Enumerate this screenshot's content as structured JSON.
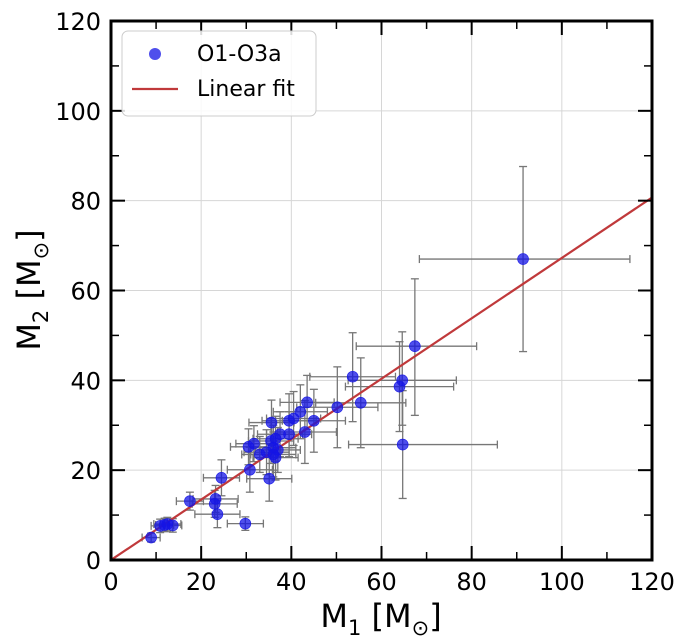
{
  "chart_data": {
    "type": "scatter",
    "title": "",
    "xlabel": {
      "main": "M",
      "sub": "1",
      "unit": "[M",
      "unit_sub": "⊙",
      "close": "]"
    },
    "ylabel": {
      "main": "M",
      "sub": "2",
      "unit": "[M",
      "unit_sub": "⊙",
      "close": "]"
    },
    "xlim": [
      0,
      120
    ],
    "ylim": [
      0,
      120
    ],
    "xticks": [
      0,
      20,
      40,
      60,
      80,
      100,
      120
    ],
    "yticks": [
      0,
      20,
      40,
      60,
      80,
      100,
      120
    ],
    "grid": true,
    "legend": {
      "placement": "top-left",
      "entries": [
        {
          "label": "O1-O3a",
          "kind": "marker",
          "color": "#1414e6"
        },
        {
          "label": "Linear fit",
          "kind": "line",
          "color": "#c0393b"
        }
      ]
    },
    "series": [
      {
        "name": "O1-O3a",
        "color": "#1414e6",
        "errorbar_color": "#777777",
        "points": [
          {
            "x": 91.4,
            "y": 67.0,
            "xerr": [
              23.0,
              23.7
            ],
            "yerr": [
              20.6,
              20.6
            ]
          },
          {
            "x": 67.4,
            "y": 47.6,
            "xerr": [
              13.0,
              13.7
            ],
            "yerr": [
              15.4,
              15.0
            ]
          },
          {
            "x": 53.6,
            "y": 40.8,
            "xerr": [
              9.5,
              9.5
            ],
            "yerr": [
              10.0,
              9.8
            ]
          },
          {
            "x": 64.6,
            "y": 40.0,
            "xerr": [
              12.0,
              12.0
            ],
            "yerr": [
              10.0,
              10.8
            ]
          },
          {
            "x": 64.0,
            "y": 38.6,
            "xerr": [
              12.0,
              12.0
            ],
            "yerr": [
              10.0,
              10.0
            ]
          },
          {
            "x": 55.4,
            "y": 35.0,
            "xerr": [
              10.0,
              10.0
            ],
            "yerr": [
              10.0,
              10.0
            ]
          },
          {
            "x": 64.7,
            "y": 25.7,
            "xerr": [
              12.0,
              21.0
            ],
            "yerr": [
              12.0,
              12.0
            ]
          },
          {
            "x": 50.2,
            "y": 34.0,
            "xerr": [
              9.0,
              9.0
            ],
            "yerr": [
              9.0,
              9.0
            ]
          },
          {
            "x": 43.5,
            "y": 35.1,
            "xerr": [
              6.0,
              6.0
            ],
            "yerr": [
              6.0,
              6.0
            ]
          },
          {
            "x": 42.0,
            "y": 33.0,
            "xerr": [
              6.0,
              6.0
            ],
            "yerr": [
              6.0,
              6.0
            ]
          },
          {
            "x": 40.5,
            "y": 31.5,
            "xerr": [
              6.0,
              6.0
            ],
            "yerr": [
              6.0,
              6.0
            ]
          },
          {
            "x": 39.5,
            "y": 31.0,
            "xerr": [
              6.0,
              6.0
            ],
            "yerr": [
              6.0,
              6.0
            ]
          },
          {
            "x": 45.0,
            "y": 31.0,
            "xerr": [
              7.0,
              7.0
            ],
            "yerr": [
              7.0,
              7.0
            ]
          },
          {
            "x": 35.6,
            "y": 30.6,
            "xerr": [
              5.0,
              5.0
            ],
            "yerr": [
              5.0,
              5.0
            ]
          },
          {
            "x": 39.5,
            "y": 28.0,
            "xerr": [
              5.0,
              5.0
            ],
            "yerr": [
              5.0,
              5.0
            ]
          },
          {
            "x": 43.0,
            "y": 28.5,
            "xerr": [
              7.0,
              7.0
            ],
            "yerr": [
              7.0,
              7.0
            ]
          },
          {
            "x": 37.5,
            "y": 28.0,
            "xerr": [
              5.0,
              5.0
            ],
            "yerr": [
              5.0,
              5.0
            ]
          },
          {
            "x": 36.5,
            "y": 27.0,
            "xerr": [
              5.0,
              5.0
            ],
            "yerr": [
              5.0,
              5.0
            ]
          },
          {
            "x": 35.5,
            "y": 26.5,
            "xerr": [
              5.0,
              5.0
            ],
            "yerr": [
              5.0,
              5.0
            ]
          },
          {
            "x": 31.7,
            "y": 25.9,
            "xerr": [
              4.0,
              4.0
            ],
            "yerr": [
              4.0,
              4.0
            ]
          },
          {
            "x": 30.5,
            "y": 25.2,
            "xerr": [
              4.0,
              4.0
            ],
            "yerr": [
              4.0,
              4.0
            ]
          },
          {
            "x": 36.0,
            "y": 25.0,
            "xerr": [
              5.0,
              5.0
            ],
            "yerr": [
              5.0,
              5.0
            ]
          },
          {
            "x": 37.0,
            "y": 24.5,
            "xerr": [
              5.0,
              5.0
            ],
            "yerr": [
              5.0,
              5.0
            ]
          },
          {
            "x": 34.5,
            "y": 24.0,
            "xerr": [
              5.0,
              5.0
            ],
            "yerr": [
              5.0,
              5.0
            ]
          },
          {
            "x": 36.0,
            "y": 23.5,
            "xerr": [
              5.0,
              5.0
            ],
            "yerr": [
              5.0,
              5.0
            ]
          },
          {
            "x": 33.0,
            "y": 23.5,
            "xerr": [
              4.0,
              4.0
            ],
            "yerr": [
              4.0,
              4.0
            ]
          },
          {
            "x": 36.5,
            "y": 22.8,
            "xerr": [
              5.0,
              5.0
            ],
            "yerr": [
              5.0,
              5.0
            ]
          },
          {
            "x": 30.8,
            "y": 20.1,
            "xerr": [
              5.0,
              5.0
            ],
            "yerr": [
              5.0,
              5.0
            ]
          },
          {
            "x": 35.1,
            "y": 18.1,
            "xerr": [
              5.0,
              5.0
            ],
            "yerr": [
              5.0,
              5.0
            ]
          },
          {
            "x": 24.5,
            "y": 18.3,
            "xerr": [
              4.0,
              4.0
            ],
            "yerr": [
              4.0,
              4.0
            ]
          },
          {
            "x": 17.5,
            "y": 13.1,
            "xerr": [
              3.0,
              3.0
            ],
            "yerr": [
              2.0,
              2.0
            ]
          },
          {
            "x": 23.2,
            "y": 13.6,
            "xerr": [
              5.0,
              5.0
            ],
            "yerr": [
              3.0,
              3.0
            ]
          },
          {
            "x": 23.0,
            "y": 12.5,
            "xerr": [
              5.0,
              5.0
            ],
            "yerr": [
              3.0,
              3.0
            ]
          },
          {
            "x": 23.6,
            "y": 10.2,
            "xerr": [
              5.0,
              5.0
            ],
            "yerr": [
              3.0,
              3.0
            ]
          },
          {
            "x": 29.8,
            "y": 8.1,
            "xerr": [
              4.0,
              4.0
            ],
            "yerr": [
              1.5,
              1.5
            ]
          },
          {
            "x": 10.9,
            "y": 7.6,
            "xerr": [
              2.0,
              2.0
            ],
            "yerr": [
              1.5,
              1.5
            ]
          },
          {
            "x": 11.9,
            "y": 7.8,
            "xerr": [
              2.0,
              2.0
            ],
            "yerr": [
              1.5,
              1.5
            ]
          },
          {
            "x": 13.7,
            "y": 7.7,
            "xerr": [
              2.0,
              2.0
            ],
            "yerr": [
              1.5,
              1.5
            ]
          },
          {
            "x": 12.5,
            "y": 8.0,
            "xerr": [
              3.0,
              3.0
            ],
            "yerr": [
              1.5,
              1.5
            ]
          },
          {
            "x": 8.9,
            "y": 5.0,
            "xerr": [
              2.0,
              2.0
            ],
            "yerr": [
              1.0,
              1.0
            ]
          }
        ]
      },
      {
        "name": "Linear fit",
        "type": "line",
        "color": "#c0393b",
        "x": [
          0,
          120
        ],
        "y": [
          0,
          80.7
        ]
      }
    ]
  }
}
